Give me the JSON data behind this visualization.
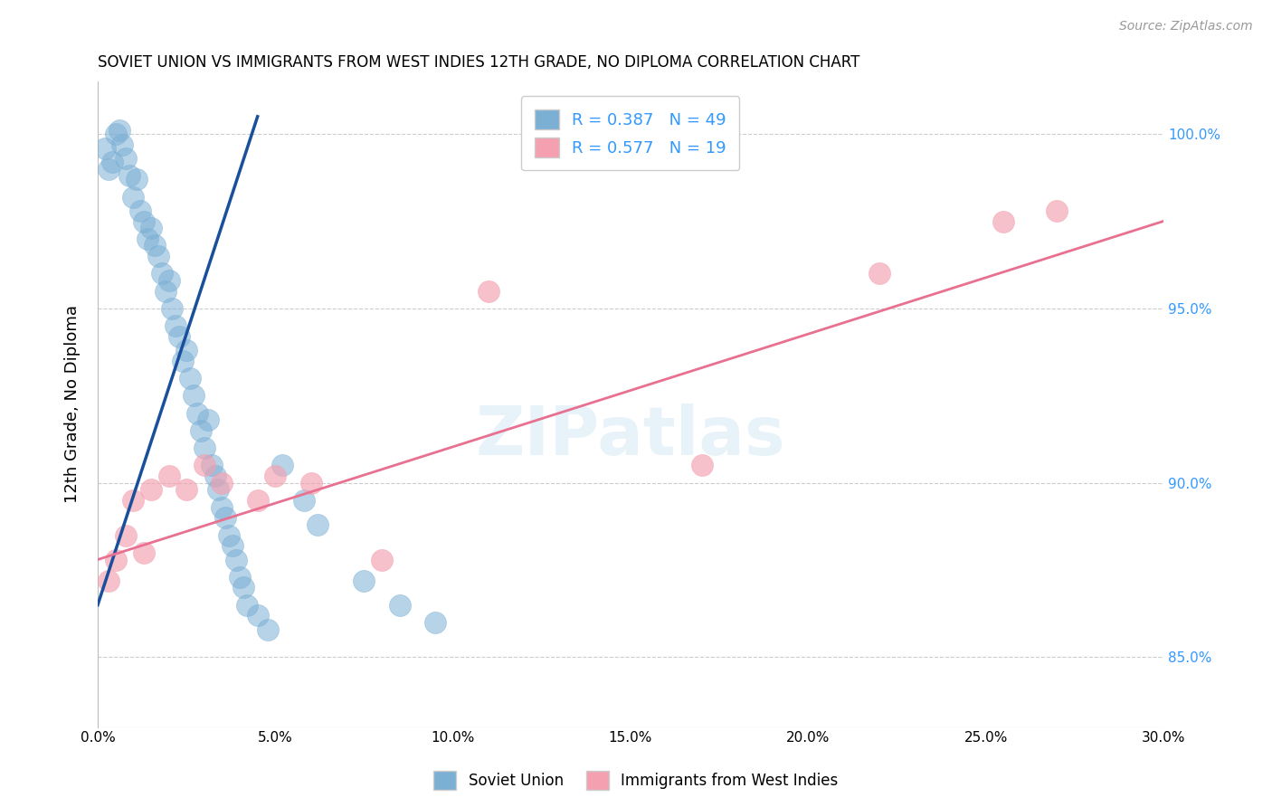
{
  "title": "SOVIET UNION VS IMMIGRANTS FROM WEST INDIES 12TH GRADE, NO DIPLOMA CORRELATION CHART",
  "source": "Source: ZipAtlas.com",
  "ylabel": "12th Grade, No Diploma",
  "xmin": 0.0,
  "xmax": 30.0,
  "ymin": 83.0,
  "ymax": 101.5,
  "yticks": [
    85.0,
    90.0,
    95.0,
    100.0
  ],
  "ytick_labels": [
    "85.0%",
    "90.0%",
    "95.0%",
    "100.0%"
  ],
  "xticks": [
    0.0,
    5.0,
    10.0,
    15.0,
    20.0,
    25.0,
    30.0
  ],
  "xtick_labels": [
    "0.0%",
    "5.0%",
    "10.0%",
    "15.0%",
    "20.0%",
    "25.0%",
    "30.0%"
  ],
  "blue_R": 0.387,
  "blue_N": 49,
  "pink_R": 0.577,
  "pink_N": 19,
  "blue_color": "#7BAFD4",
  "pink_color": "#F4A0B0",
  "blue_line_color": "#1A4F9C",
  "pink_line_color": "#E87090",
  "watermark": "ZIPatlas",
  "blue_scatter_x": [
    0.2,
    0.3,
    0.4,
    0.5,
    0.6,
    0.7,
    0.8,
    0.9,
    1.0,
    1.1,
    1.2,
    1.3,
    1.4,
    1.5,
    1.6,
    1.7,
    1.8,
    1.9,
    2.0,
    2.1,
    2.2,
    2.3,
    2.4,
    2.5,
    2.6,
    2.7,
    2.8,
    2.9,
    3.0,
    3.1,
    3.2,
    3.3,
    3.4,
    3.5,
    3.6,
    3.7,
    3.8,
    3.9,
    4.0,
    4.1,
    4.2,
    4.5,
    4.8,
    5.2,
    5.8,
    6.2,
    7.5,
    8.5,
    9.5
  ],
  "blue_scatter_y": [
    99.6,
    99.0,
    99.2,
    100.0,
    100.1,
    99.7,
    99.3,
    98.8,
    98.2,
    98.7,
    97.8,
    97.5,
    97.0,
    97.3,
    96.8,
    96.5,
    96.0,
    95.5,
    95.8,
    95.0,
    94.5,
    94.2,
    93.5,
    93.8,
    93.0,
    92.5,
    92.0,
    91.5,
    91.0,
    91.8,
    90.5,
    90.2,
    89.8,
    89.3,
    89.0,
    88.5,
    88.2,
    87.8,
    87.3,
    87.0,
    86.5,
    86.2,
    85.8,
    90.5,
    89.5,
    88.8,
    87.2,
    86.5,
    86.0
  ],
  "pink_scatter_x": [
    0.3,
    0.5,
    0.8,
    1.0,
    1.3,
    1.5,
    2.0,
    2.5,
    3.0,
    3.5,
    4.5,
    5.0,
    6.0,
    8.0,
    11.0,
    17.0,
    22.0,
    25.5,
    27.0
  ],
  "pink_scatter_y": [
    87.2,
    87.8,
    88.5,
    89.5,
    88.0,
    89.8,
    90.2,
    89.8,
    90.5,
    90.0,
    89.5,
    90.2,
    90.0,
    87.8,
    95.5,
    90.5,
    96.0,
    97.5,
    97.8
  ],
  "blue_trend_x": [
    0.0,
    4.5
  ],
  "blue_trend_y": [
    86.5,
    100.5
  ],
  "pink_trend_x": [
    0.0,
    30.0
  ],
  "pink_trend_y": [
    87.8,
    97.5
  ]
}
